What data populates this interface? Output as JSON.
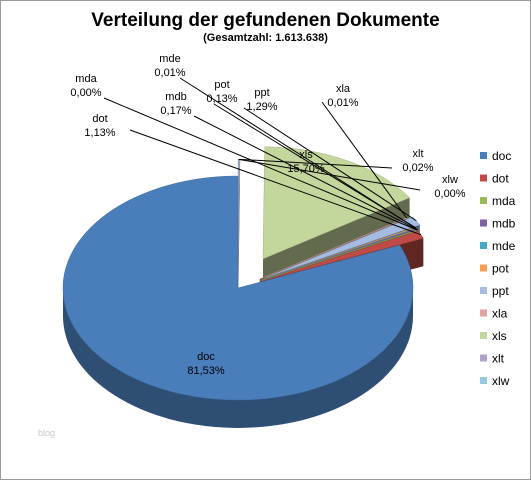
{
  "chart_data": {
    "type": "pie",
    "title": "Verteilung der gefundenen Dokumente",
    "subtitle": "(Gesamtzahl: 1.613.638)",
    "categories": [
      "doc",
      "dot",
      "mda",
      "mdb",
      "mde",
      "pot",
      "ppt",
      "xla",
      "xls",
      "xlt",
      "xlw"
    ],
    "values": [
      81.53,
      1.13,
      0.0,
      0.17,
      0.01,
      0.13,
      1.29,
      0.01,
      15.7,
      0.02,
      0.0
    ],
    "labels": [
      {
        "name": "doc",
        "value": "81,53%"
      },
      {
        "name": "dot",
        "value": "1,13%"
      },
      {
        "name": "mda",
        "value": "0,00%"
      },
      {
        "name": "mdb",
        "value": "0,17%"
      },
      {
        "name": "mde",
        "value": "0,01%"
      },
      {
        "name": "pot",
        "value": "0,13%"
      },
      {
        "name": "ppt",
        "value": "1,29%"
      },
      {
        "name": "xla",
        "value": "0,01%"
      },
      {
        "name": "xls",
        "value": "15,70%"
      },
      {
        "name": "xlt",
        "value": "0,02%"
      },
      {
        "name": "xlw",
        "value": "0,00%"
      }
    ],
    "colors": {
      "doc": "#4a7ebb",
      "dot": "#be4b48",
      "mda": "#98b954",
      "mdb": "#7d60a0",
      "mde": "#46aac5",
      "pot": "#f59d56",
      "ppt": "#a5bbe0",
      "xla": "#e0a3a3",
      "xls": "#c3d69b",
      "xlt": "#b3a2c7",
      "xlw": "#93cddd"
    },
    "legend": "right",
    "style": "3d-exploded"
  },
  "watermark": "blog"
}
